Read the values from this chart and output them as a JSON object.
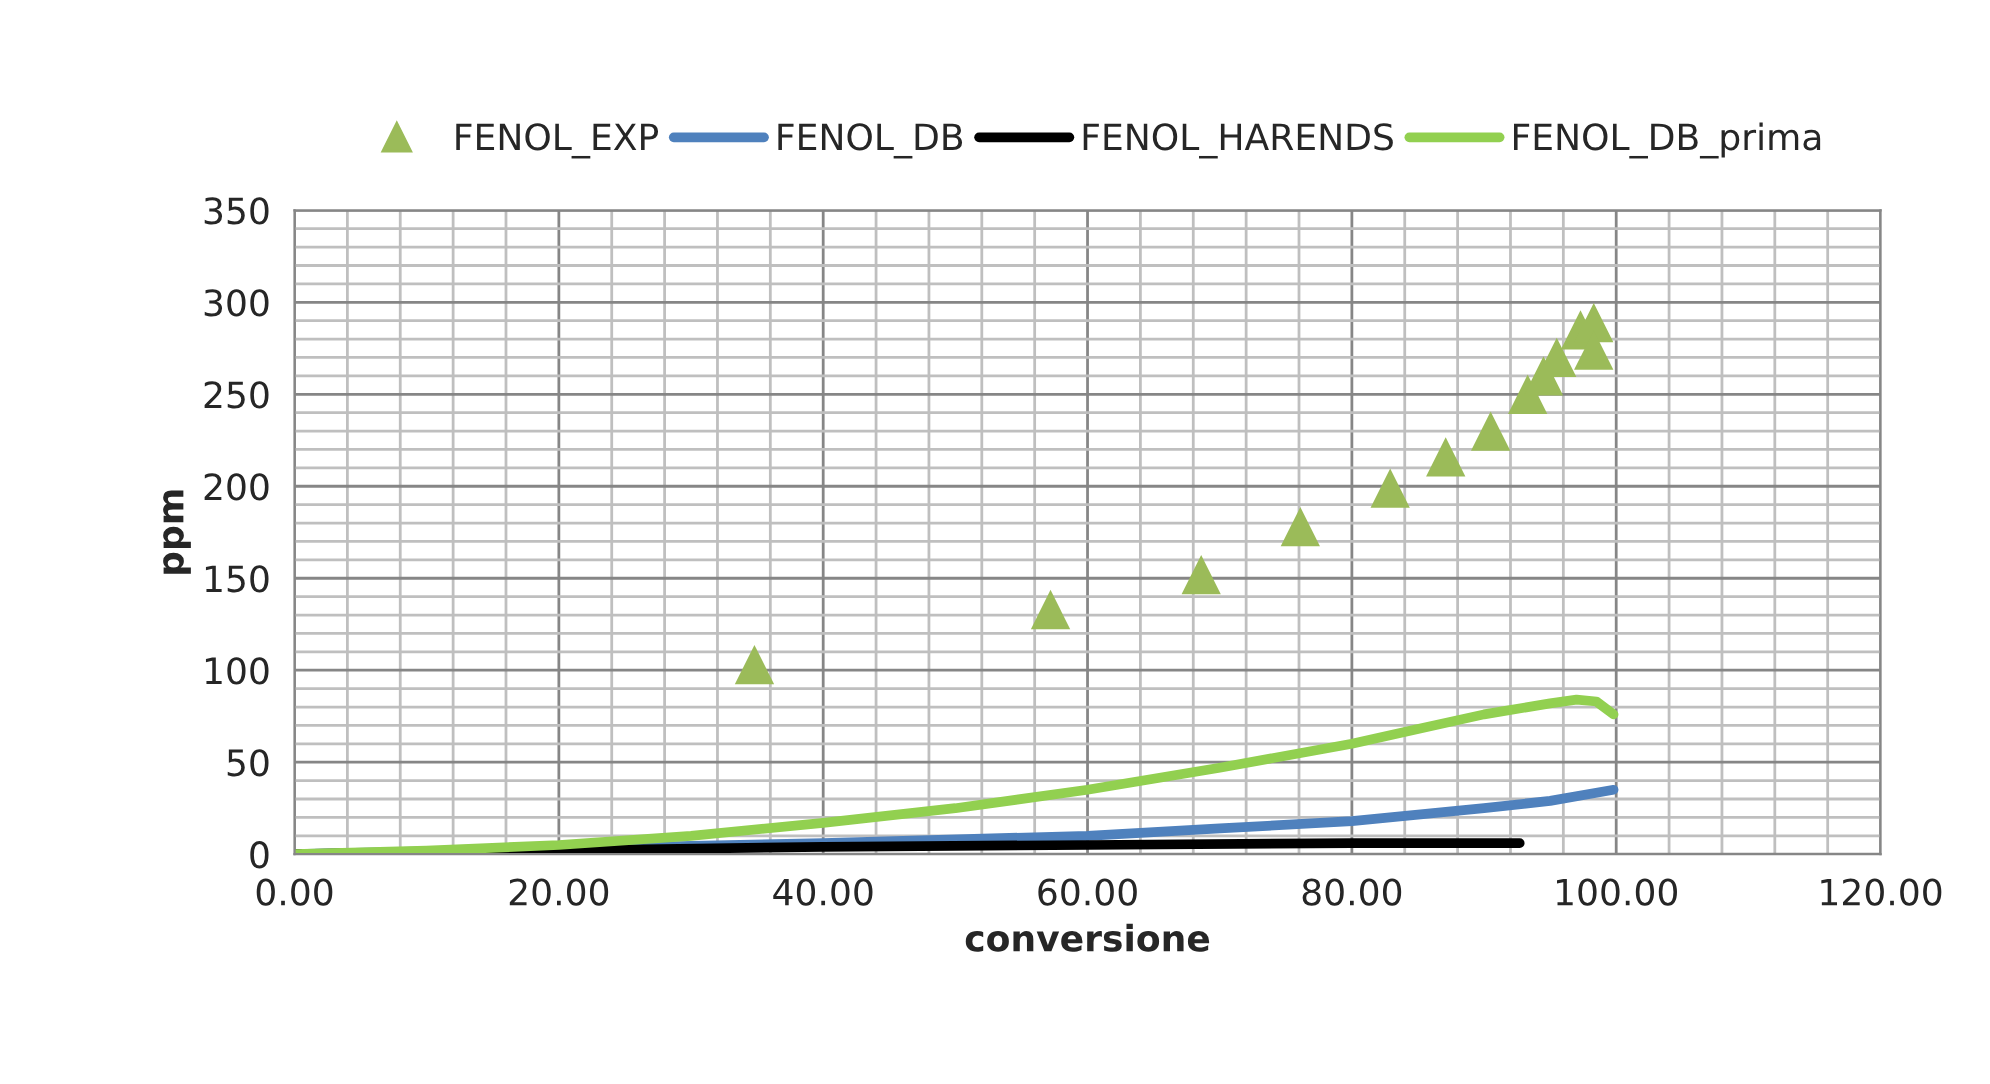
{
  "chart_data": {
    "type": "line",
    "xlabel": "conversione",
    "ylabel": "ppm",
    "xlim": [
      0,
      120
    ],
    "ylim": [
      0,
      350
    ],
    "xticks": [
      {
        "value": 0,
        "label": "0.00"
      },
      {
        "value": 20,
        "label": "20.00"
      },
      {
        "value": 40,
        "label": "40.00"
      },
      {
        "value": 60,
        "label": "60.00"
      },
      {
        "value": 80,
        "label": "80.00"
      },
      {
        "value": 100,
        "label": "100.00"
      },
      {
        "value": 120,
        "label": "120.00"
      }
    ],
    "yticks": [
      0,
      50,
      100,
      150,
      200,
      250,
      300,
      350
    ],
    "grid": true,
    "legend": "top",
    "series": [
      {
        "name": "FENOL_EXP",
        "type": "scatter",
        "marker": "triangle",
        "color": "#9bbb59",
        "x": [
          34.8,
          57.2,
          68.6,
          76.1,
          82.9,
          87.1,
          90.5,
          93.3,
          94.5,
          95.5,
          97.3,
          98.3,
          98.3
        ],
        "values": [
          103,
          133,
          152,
          178,
          199,
          216,
          230,
          250,
          260,
          270,
          285,
          289,
          274
        ]
      },
      {
        "name": "FENOL_DB",
        "color": "#4f81bd",
        "x": [
          0,
          20,
          40,
          60,
          70,
          80,
          90,
          95,
          99.8
        ],
        "values": [
          0,
          3,
          6,
          10,
          14,
          18,
          25,
          29,
          35
        ]
      },
      {
        "name": "FENOL_HARENDS",
        "color": "#000000",
        "x": [
          0,
          20,
          40,
          60,
          80,
          92.7
        ],
        "values": [
          0,
          2,
          4,
          5,
          6,
          6
        ]
      },
      {
        "name": "FENOL_DB_prima",
        "color": "#92d050",
        "x": [
          0,
          10,
          20,
          30,
          40,
          50,
          60,
          70,
          80,
          85,
          90,
          95,
          97,
          98.5,
          99.8
        ],
        "values": [
          0,
          2,
          5,
          10,
          17,
          25,
          35,
          47,
          60,
          68,
          76,
          82,
          84,
          83,
          76
        ]
      }
    ]
  }
}
